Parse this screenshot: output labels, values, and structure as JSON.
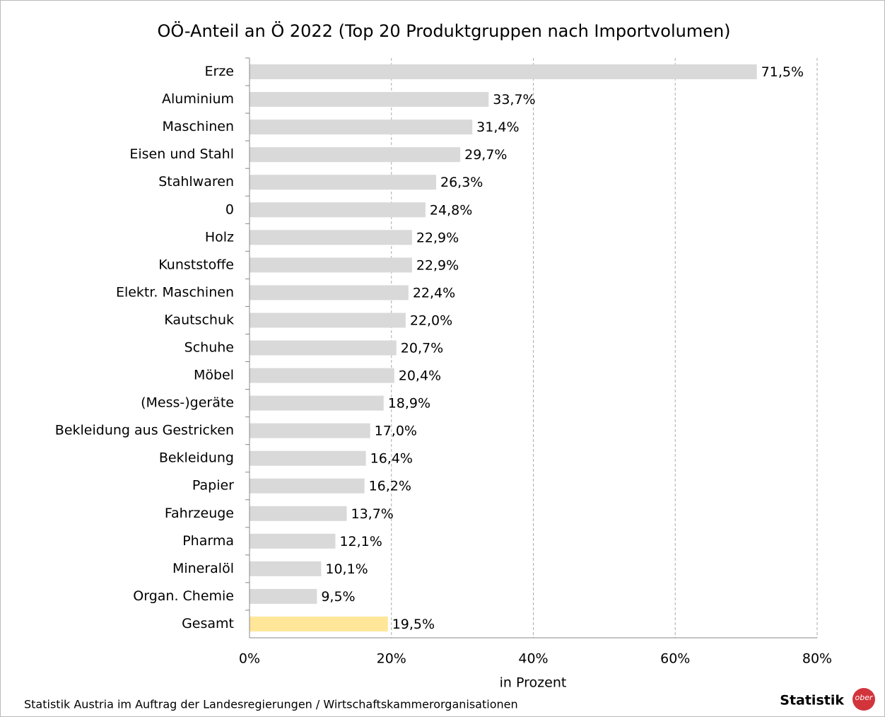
{
  "chart_data": {
    "type": "bar",
    "orientation": "horizontal",
    "title": "OÖ-Anteil an Ö 2022 (Top 20 Produktgruppen nach Importvolumen)",
    "categories": [
      "Erze",
      "Aluminium",
      "Maschinen",
      "Eisen und Stahl",
      "Stahlwaren",
      "0",
      "Holz",
      "Kunststoffe",
      "Elektr. Maschinen",
      "Kautschuk",
      "Schuhe",
      "Möbel",
      "(Mess-)geräte",
      "Bekleidung aus Gestricken",
      "Bekleidung",
      "Papier",
      "Fahrzeuge",
      "Pharma",
      "Mineralöl",
      "Organ. Chemie",
      "Gesamt"
    ],
    "values": [
      71.5,
      33.7,
      31.4,
      29.7,
      26.3,
      24.8,
      22.9,
      22.9,
      22.4,
      22.0,
      20.7,
      20.4,
      18.9,
      17.0,
      16.4,
      16.2,
      13.7,
      12.1,
      10.1,
      9.5,
      19.5
    ],
    "value_labels": [
      "71,5%",
      "33,7%",
      "31,4%",
      "29,7%",
      "26,3%",
      "24,8%",
      "22,9%",
      "22,9%",
      "22,4%",
      "22,0%",
      "20,7%",
      "20,4%",
      "18,9%",
      "17,0%",
      "16,4%",
      "16,2%",
      "13,7%",
      "12,1%",
      "10,1%",
      "9,5%",
      "19,5%"
    ],
    "colors": [
      "#d9d9d9",
      "#d9d9d9",
      "#d9d9d9",
      "#d9d9d9",
      "#d9d9d9",
      "#d9d9d9",
      "#d9d9d9",
      "#d9d9d9",
      "#d9d9d9",
      "#d9d9d9",
      "#d9d9d9",
      "#d9d9d9",
      "#d9d9d9",
      "#d9d9d9",
      "#d9d9d9",
      "#d9d9d9",
      "#d9d9d9",
      "#d9d9d9",
      "#d9d9d9",
      "#d9d9d9",
      "#ffe699"
    ],
    "xlim": [
      0,
      80
    ],
    "xticks": [
      {
        "value": 0,
        "label": "0%"
      },
      {
        "value": 20,
        "label": "20%"
      },
      {
        "value": 40,
        "label": "40%"
      },
      {
        "value": 60,
        "label": "60%"
      },
      {
        "value": 80,
        "label": "80%"
      }
    ],
    "x_label": "in Prozent",
    "grid": true,
    "source": "Statistik Austria im Auftrag der Landesregierungen / Wirtschaftskammerorganisationen",
    "logo": {
      "text": "Statistik",
      "badge": "ober"
    }
  }
}
